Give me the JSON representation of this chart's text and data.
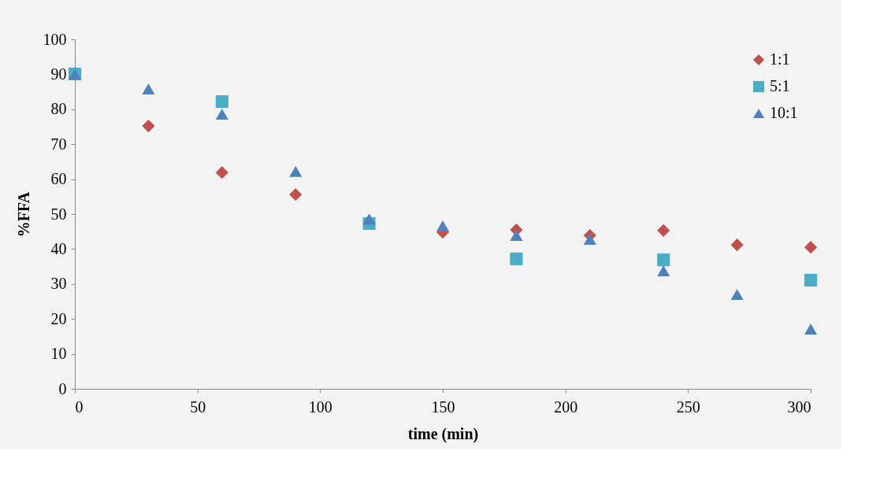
{
  "chart_data": {
    "type": "scatter",
    "xlabel": "time (min)",
    "ylabel": "%FFA",
    "x": [
      0,
      30,
      60,
      90,
      120,
      150,
      180,
      210,
      240,
      270,
      300
    ],
    "series": [
      {
        "name": "1:1",
        "color": "#c0504d",
        "marker": "diamond",
        "values": [
          null,
          75.2,
          61.9,
          55.6,
          null,
          44.8,
          45.5,
          43.9,
          45.3,
          41.2,
          40.5
        ]
      },
      {
        "name": "5:1",
        "color": "#4bacc6",
        "marker": "square",
        "values": [
          90.1,
          null,
          82.2,
          null,
          47.3,
          null,
          37.2,
          null,
          36.9,
          null,
          31.1
        ]
      },
      {
        "name": "10:1",
        "color": "#4f81bd",
        "marker": "triangle",
        "values": [
          90,
          85.8,
          78.6,
          62.2,
          48.6,
          46.6,
          43.9,
          42.8,
          33.8,
          27,
          17.1
        ]
      }
    ],
    "xlim": [
      0,
      300
    ],
    "xticks": [
      0,
      50,
      100,
      150,
      200,
      250,
      300
    ],
    "ylim": [
      0,
      100
    ],
    "yticks": [
      0,
      10,
      20,
      30,
      40,
      50,
      60,
      70,
      80,
      90,
      100
    ],
    "grid": false,
    "legend": "top right"
  }
}
